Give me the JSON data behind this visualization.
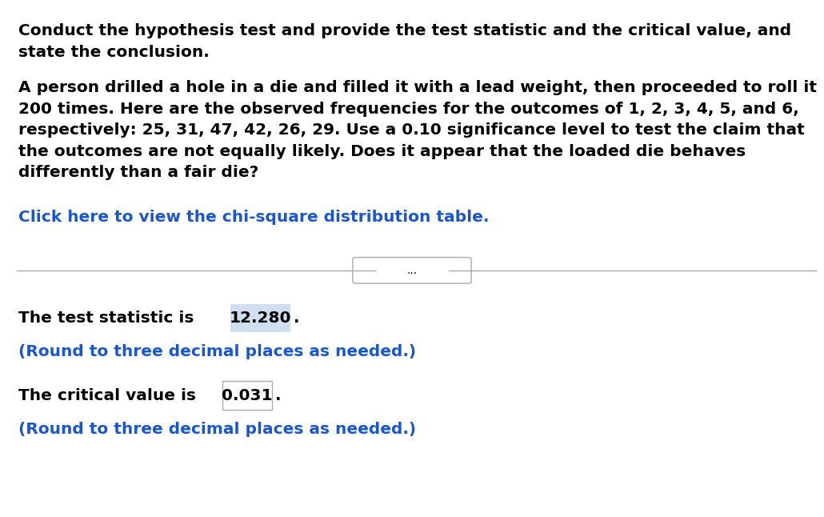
{
  "bg_color": "#ffffff",
  "title_text": "Conduct the hypothesis test and provide the test statistic and the critical value, and\nstate the conclusion.",
  "paragraph_text": "A person drilled a hole in a die and filled it with a lead weight, then proceeded to roll it\n200 times. Here are the observed frequencies for the outcomes of 1, 2, 3, 4, 5, and 6,\nrespectively: 25, 31, 47, 42, 26, 29. Use a 0.10 significance level to test the claim that\nthe outcomes are not equally likely. Does it appear that the loaded die behaves\ndifferently than a fair die?",
  "link_text": "Click here to view the chi-square distribution table.",
  "divider_dots": "...",
  "test_stat_label": "The test statistic is ",
  "test_stat_value": "12.280",
  "test_stat_suffix": ".",
  "round_note_1": "(Round to three decimal places as needed.)",
  "critical_val_label": "The critical value is ",
  "critical_val_value": "0.031",
  "critical_val_suffix": ".",
  "round_note_2": "(Round to three decimal places as needed.)",
  "title_fontsize": 14.5,
  "body_fontsize": 14.5,
  "link_fontsize": 14.5,
  "result_fontsize": 14.5,
  "note_fontsize": 14.5,
  "text_color": "#000000",
  "link_color": "#1a56cc",
  "note_color": "#1a56cc",
  "box_color_stat": "#d0dff0",
  "box_color_critical": "#ffffff",
  "line_color": "#aaaaaa"
}
